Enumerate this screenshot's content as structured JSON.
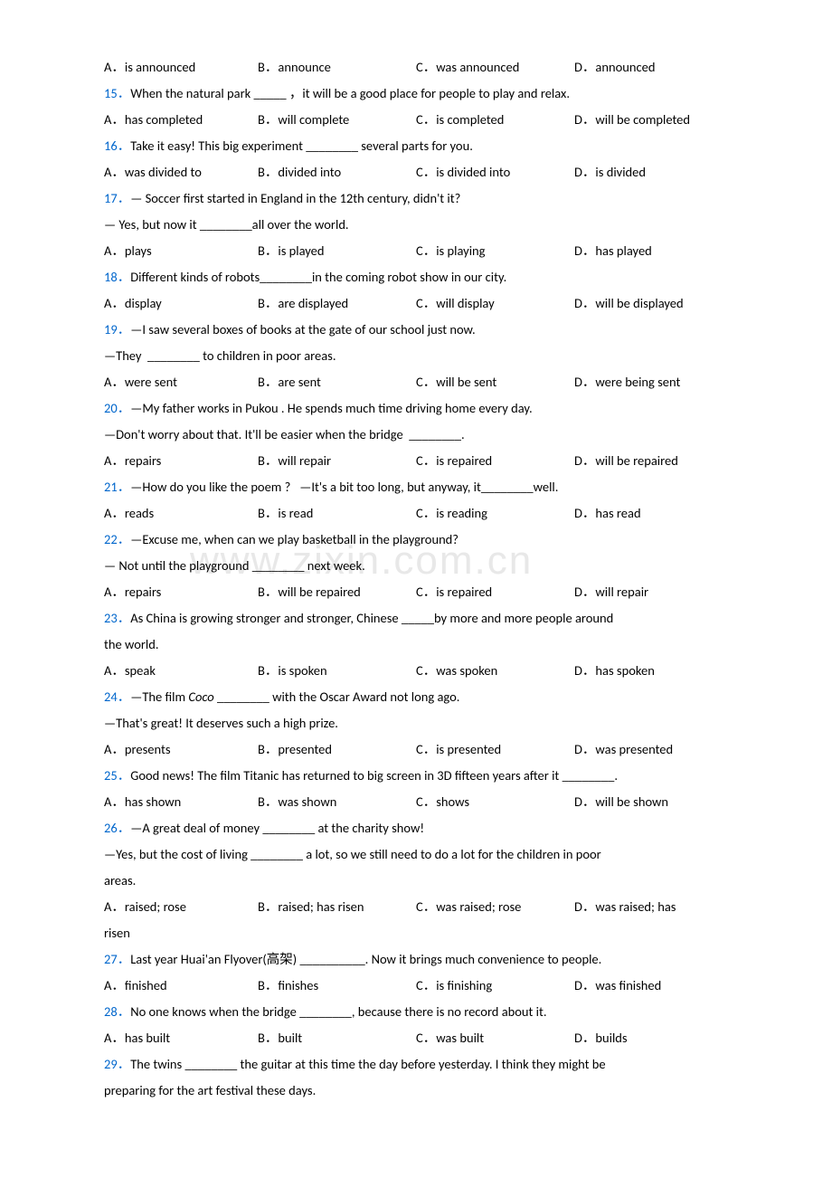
{
  "watermark": "www.zixin.com.cn",
  "questions": [
    {
      "id": "q14",
      "opts": [
        "A．is announced",
        "B．announce",
        "C．was announced",
        "D．announced"
      ]
    },
    {
      "id": "q15",
      "num": "15．",
      "text": "When the natural park _____ ，it will be a good place for people to play and relax.",
      "opts": [
        "A．has completed",
        "B．will complete",
        "C．is completed",
        "D．will be completed"
      ]
    },
    {
      "id": "q16",
      "num": "16．",
      "text": "Take it easy! This big experiment ________ several parts for you.",
      "opts": [
        "A．was divided to",
        "B．divided into",
        "C．is divided into",
        "D．is divided"
      ]
    },
    {
      "id": "q17",
      "num": "17．",
      "text": "— Soccer first started in England in the 12th century, didn't it?",
      "cont": [
        "— Yes, but now it ________all over the world."
      ],
      "opts": [
        "A．plays",
        "B．is played",
        "C．is playing",
        "D．has played"
      ]
    },
    {
      "id": "q18",
      "num": "18．",
      "text": "Different kinds of robots________in the coming robot show in our city.",
      "opts": [
        "A．display",
        "B．are displayed",
        "C．will display",
        "D．will be displayed"
      ]
    },
    {
      "id": "q19",
      "num": "19．",
      "text": "—I saw several boxes of books at the gate of our school just now.",
      "cont": [
        "—They  ________ to children in poor areas."
      ],
      "opts": [
        "A．were sent",
        "B．are sent",
        "C．will be sent",
        "D．were being sent"
      ]
    },
    {
      "id": "q20",
      "num": "20．",
      "text": "—My father works in Pukou . He spends much time driving home every day.",
      "cont": [
        "—Don't worry about that. It'll be easier when the bridge  ________."
      ],
      "opts": [
        "A．repairs",
        "B．will repair",
        "C．is repaired",
        "D．will be repaired"
      ]
    },
    {
      "id": "q21",
      "num": "21．",
      "text": "—How do you like the poem ?   —It's a bit too long, but anyway, it________well.",
      "opts": [
        "A．reads",
        "B．is read",
        "C．is reading",
        "D．has read"
      ]
    },
    {
      "id": "q22",
      "num": "22．",
      "text": "—Excuse me, when can we play basketball in the playground?",
      "cont": [
        "— Not until the playground ________ next week."
      ],
      "opts": [
        "A．repairs",
        "B．will be repaired",
        "C．is repaired",
        "D．will repair"
      ]
    },
    {
      "id": "q23",
      "num": "23．",
      "text": "As China is growing stronger and stronger, Chinese _____by more and more people around",
      "cont": [
        "the world."
      ],
      "opts": [
        "A．speak",
        "B．is spoken",
        "C．was spoken",
        "D．has spoken"
      ]
    },
    {
      "id": "q24",
      "num": "24．",
      "text_html": "—The film <i>Coco</i> ________ with the Oscar Award not long ago.",
      "cont": [
        "—That's great! It deserves such a high prize."
      ],
      "opts": [
        "A．presents",
        "B．presented",
        "C．is presented",
        "D．was presented"
      ]
    },
    {
      "id": "q25",
      "num": "25．",
      "text": "Good news! The film Titanic has returned to big screen in 3D fifteen years after it ________.",
      "opts": [
        "A．has shown",
        "B．was shown",
        "C．shows",
        "D．will be shown"
      ]
    },
    {
      "id": "q26",
      "num": "26．",
      "text": "—A great deal of money ________ at the charity show!",
      "cont": [
        "—Yes, but the cost of living ________ a lot, so we still need to do a lot for the children in poor",
        "areas."
      ],
      "opts": [
        "A．raised; rose",
        "B．raised; has risen",
        "C．was raised; rose",
        "D．was raised; has"
      ],
      "tail": "risen"
    },
    {
      "id": "q27",
      "num": "27．",
      "text": "Last year Huai'an Flyover(高架) __________. Now it brings much convenience to people.",
      "opts": [
        "A．finished",
        "B．finishes",
        "C．is finishing",
        "D．was finished"
      ]
    },
    {
      "id": "q28",
      "num": "28．",
      "text": "No one knows when the bridge ________, because there is no record about it.",
      "opts": [
        "A．has built",
        "B．built",
        "C．was built",
        "D．builds"
      ]
    },
    {
      "id": "q29",
      "num": "29．",
      "text": "The twins ________ the guitar at this time the day before yesterday. I think they might be",
      "cont": [
        "preparing for the art festival these days."
      ]
    }
  ]
}
